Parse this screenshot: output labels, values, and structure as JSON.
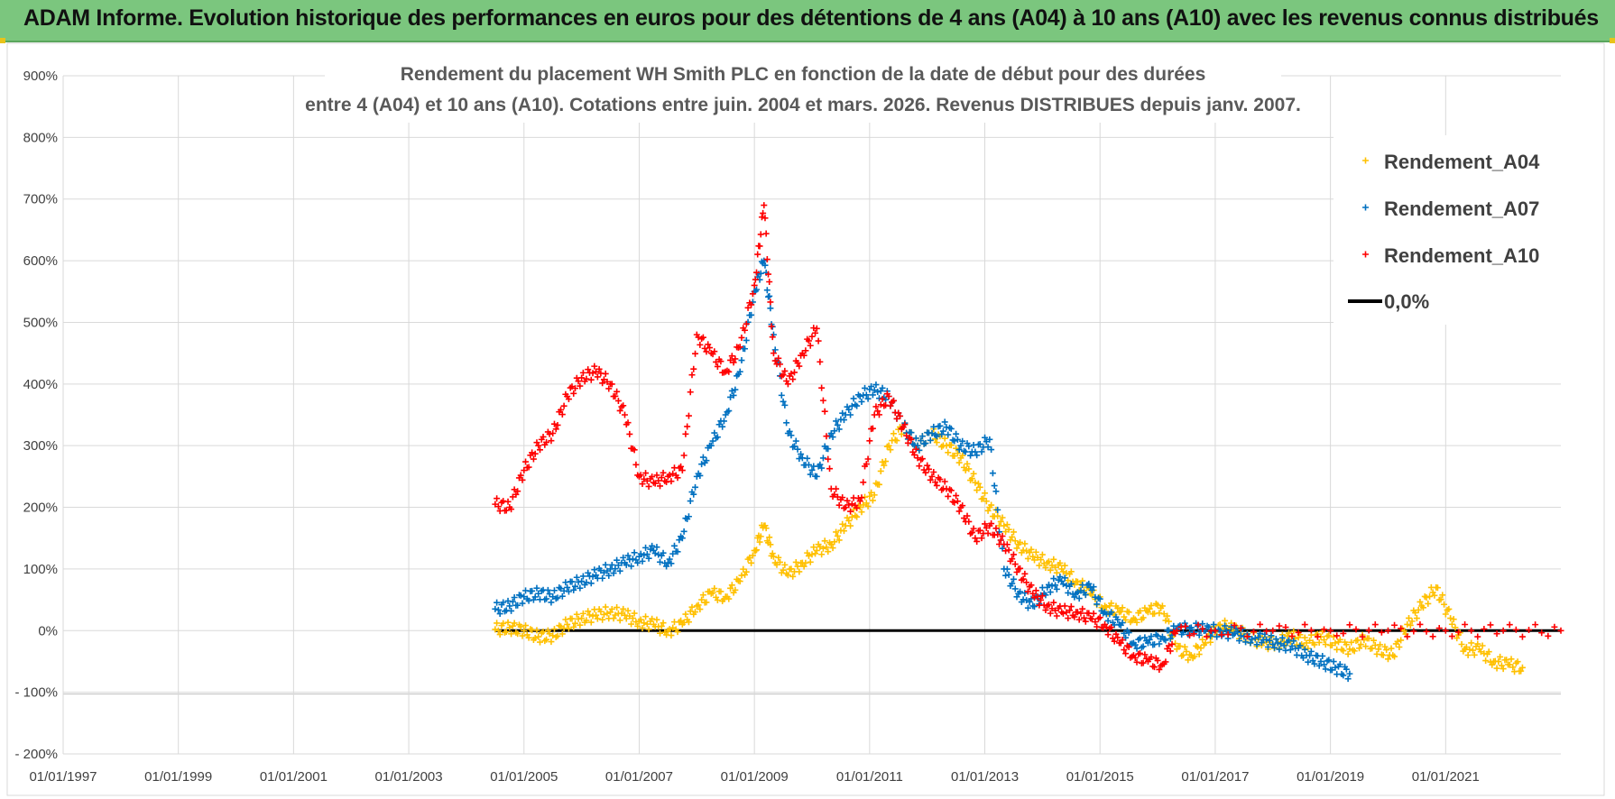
{
  "banner": {
    "title": "ADAM Informe. Evolution historique des performances en euros pour des détentions de 4 ans (A04) à 10 ans (A10) avec les revenus connus distribués"
  },
  "colors": {
    "banner_bg": "#7bc67e",
    "A04": "#ffc000",
    "A07": "#0070c0",
    "A10": "#ff0000",
    "zero_line": "#000000"
  },
  "chart_data": {
    "type": "scatter",
    "title": "Rendement du placement WH Smith PLC en fonction de la date de début pour des durées",
    "subtitle": "entre 4 (A04) et 10 ans (A10).  Cotations entre juin. 2004 et mars. 2026.  Revenus DISTRIBUES depuis janv. 2007.",
    "xlabel": "",
    "ylabel": "",
    "x_range": [
      "1997-01-01",
      "2023-01-01"
    ],
    "ylim": [
      -200,
      900
    ],
    "y_unit": "%",
    "x_ticks": [
      "01/01/1997",
      "01/01/1999",
      "01/01/2001",
      "01/01/2003",
      "01/01/2005",
      "01/01/2007",
      "01/01/2009",
      "01/01/2011",
      "01/01/2013",
      "01/01/2015",
      "01/01/2017",
      "01/01/2019",
      "01/01/2021"
    ],
    "y_ticks": [
      "900%",
      "800%",
      "700%",
      "600%",
      "500%",
      "400%",
      "300%",
      "200%",
      "100%",
      "0%",
      "- 100%",
      "- 200%"
    ],
    "grid": true,
    "legend_position": "top-right",
    "series": [
      {
        "name": "Rendement_A04",
        "points": [
          [
            "2004-07",
            2
          ],
          [
            "2004-10",
            5
          ],
          [
            "2005-01",
            0
          ],
          [
            "2005-04",
            -10
          ],
          [
            "2005-07",
            -8
          ],
          [
            "2005-10",
            10
          ],
          [
            "2006-01",
            20
          ],
          [
            "2006-04",
            25
          ],
          [
            "2006-07",
            30
          ],
          [
            "2006-10",
            25
          ],
          [
            "2007-01",
            15
          ],
          [
            "2007-04",
            10
          ],
          [
            "2007-07",
            0
          ],
          [
            "2007-10",
            10
          ],
          [
            "2008-01",
            40
          ],
          [
            "2008-04",
            60
          ],
          [
            "2008-07",
            55
          ],
          [
            "2008-10",
            80
          ],
          [
            "2009-01",
            130
          ],
          [
            "2009-03",
            170
          ],
          [
            "2009-05",
            120
          ],
          [
            "2009-08",
            90
          ],
          [
            "2009-11",
            110
          ],
          [
            "2010-02",
            130
          ],
          [
            "2010-05",
            140
          ],
          [
            "2010-08",
            170
          ],
          [
            "2010-11",
            200
          ],
          [
            "2011-02",
            220
          ],
          [
            "2011-05",
            300
          ],
          [
            "2011-08",
            330
          ],
          [
            "2011-11",
            300
          ],
          [
            "2012-02",
            320
          ],
          [
            "2012-05",
            300
          ],
          [
            "2012-08",
            280
          ],
          [
            "2012-11",
            240
          ],
          [
            "2013-02",
            200
          ],
          [
            "2013-05",
            170
          ],
          [
            "2013-08",
            140
          ],
          [
            "2013-11",
            120
          ],
          [
            "2014-02",
            110
          ],
          [
            "2014-05",
            100
          ],
          [
            "2014-08",
            80
          ],
          [
            "2014-11",
            60
          ],
          [
            "2015-02",
            40
          ],
          [
            "2015-05",
            30
          ],
          [
            "2015-08",
            20
          ],
          [
            "2015-11",
            30
          ],
          [
            "2016-02",
            40
          ],
          [
            "2016-05",
            -30
          ],
          [
            "2016-08",
            -40
          ],
          [
            "2016-11",
            -20
          ],
          [
            "2017-02",
            10
          ],
          [
            "2017-05",
            0
          ],
          [
            "2017-08",
            -10
          ],
          [
            "2017-11",
            -20
          ],
          [
            "2018-02",
            -20
          ],
          [
            "2018-05",
            -10
          ],
          [
            "2018-08",
            -20
          ],
          [
            "2018-11",
            -10
          ],
          [
            "2019-02",
            -20
          ],
          [
            "2019-05",
            -30
          ],
          [
            "2019-08",
            -15
          ],
          [
            "2019-11",
            -30
          ],
          [
            "2020-02",
            -40
          ],
          [
            "2020-05",
            10
          ],
          [
            "2020-08",
            40
          ],
          [
            "2020-11",
            70
          ],
          [
            "2021-02",
            20
          ],
          [
            "2021-05",
            -30
          ],
          [
            "2021-08",
            -30
          ],
          [
            "2021-11",
            -50
          ],
          [
            "2022-02",
            -55
          ],
          [
            "2022-05",
            -60
          ]
        ]
      },
      {
        "name": "Rendement_A07",
        "points": [
          [
            "2004-07",
            35
          ],
          [
            "2004-10",
            40
          ],
          [
            "2005-01",
            55
          ],
          [
            "2005-04",
            60
          ],
          [
            "2005-07",
            55
          ],
          [
            "2005-10",
            70
          ],
          [
            "2006-01",
            80
          ],
          [
            "2006-04",
            90
          ],
          [
            "2006-07",
            100
          ],
          [
            "2006-10",
            110
          ],
          [
            "2007-01",
            120
          ],
          [
            "2007-04",
            130
          ],
          [
            "2007-07",
            110
          ],
          [
            "2007-10",
            150
          ],
          [
            "2008-01",
            250
          ],
          [
            "2008-04",
            300
          ],
          [
            "2008-07",
            350
          ],
          [
            "2008-10",
            420
          ],
          [
            "2009-01",
            550
          ],
          [
            "2009-03",
            600
          ],
          [
            "2009-05",
            480
          ],
          [
            "2009-08",
            320
          ],
          [
            "2009-11",
            280
          ],
          [
            "2010-02",
            250
          ],
          [
            "2010-05",
            320
          ],
          [
            "2010-08",
            350
          ],
          [
            "2010-11",
            380
          ],
          [
            "2011-02",
            390
          ],
          [
            "2011-05",
            380
          ],
          [
            "2011-08",
            330
          ],
          [
            "2011-11",
            300
          ],
          [
            "2012-02",
            320
          ],
          [
            "2012-05",
            330
          ],
          [
            "2012-08",
            300
          ],
          [
            "2012-11",
            290
          ],
          [
            "2013-02",
            310
          ],
          [
            "2013-05",
            100
          ],
          [
            "2013-08",
            60
          ],
          [
            "2013-11",
            40
          ],
          [
            "2014-02",
            70
          ],
          [
            "2014-05",
            80
          ],
          [
            "2014-08",
            60
          ],
          [
            "2014-11",
            70
          ],
          [
            "2015-02",
            30
          ],
          [
            "2015-05",
            10
          ],
          [
            "2015-08",
            -20
          ],
          [
            "2015-11",
            -20
          ],
          [
            "2016-02",
            -10
          ],
          [
            "2016-05",
            0
          ],
          [
            "2016-08",
            5
          ],
          [
            "2016-11",
            0
          ],
          [
            "2017-02",
            0
          ],
          [
            "2017-05",
            -5
          ],
          [
            "2017-08",
            -10
          ],
          [
            "2017-11",
            -15
          ],
          [
            "2018-02",
            -20
          ],
          [
            "2018-05",
            -25
          ],
          [
            "2018-08",
            -40
          ],
          [
            "2018-11",
            -50
          ],
          [
            "2019-02",
            -60
          ],
          [
            "2019-05",
            -70
          ]
        ]
      },
      {
        "name": "Rendement_A10",
        "points": [
          [
            "2004-07",
            205
          ],
          [
            "2004-10",
            200
          ],
          [
            "2005-01",
            260
          ],
          [
            "2005-04",
            300
          ],
          [
            "2005-07",
            320
          ],
          [
            "2005-10",
            380
          ],
          [
            "2006-01",
            410
          ],
          [
            "2006-04",
            420
          ],
          [
            "2006-07",
            400
          ],
          [
            "2006-10",
            350
          ],
          [
            "2007-01",
            250
          ],
          [
            "2007-04",
            240
          ],
          [
            "2007-07",
            250
          ],
          [
            "2007-10",
            260
          ],
          [
            "2008-01",
            480
          ],
          [
            "2008-04",
            450
          ],
          [
            "2008-07",
            420
          ],
          [
            "2008-10",
            460
          ],
          [
            "2009-01",
            560
          ],
          [
            "2009-03",
            690
          ],
          [
            "2009-05",
            450
          ],
          [
            "2009-08",
            400
          ],
          [
            "2009-11",
            450
          ],
          [
            "2010-02",
            490
          ],
          [
            "2010-05",
            230
          ],
          [
            "2010-08",
            200
          ],
          [
            "2010-11",
            210
          ],
          [
            "2011-02",
            350
          ],
          [
            "2011-05",
            380
          ],
          [
            "2011-08",
            330
          ],
          [
            "2011-11",
            280
          ],
          [
            "2012-02",
            250
          ],
          [
            "2012-05",
            230
          ],
          [
            "2012-08",
            200
          ],
          [
            "2012-11",
            150
          ],
          [
            "2013-02",
            170
          ],
          [
            "2013-05",
            140
          ],
          [
            "2013-08",
            100
          ],
          [
            "2013-11",
            60
          ],
          [
            "2014-02",
            40
          ],
          [
            "2014-05",
            30
          ],
          [
            "2014-08",
            30
          ],
          [
            "2014-11",
            20
          ],
          [
            "2015-02",
            10
          ],
          [
            "2015-05",
            -20
          ],
          [
            "2015-08",
            -40
          ],
          [
            "2015-11",
            -50
          ],
          [
            "2016-02",
            -55
          ],
          [
            "2016-05",
            0
          ],
          [
            "2017-01",
            0
          ],
          [
            "2018-01",
            0
          ],
          [
            "2019-01",
            0
          ],
          [
            "2020-01",
            0
          ],
          [
            "2021-01",
            0
          ],
          [
            "2022-01",
            0
          ],
          [
            "2023-01",
            0
          ]
        ]
      },
      {
        "name": "0,0%",
        "line": [
          [
            "2004-07",
            0
          ],
          [
            "2023-01",
            0
          ]
        ]
      }
    ]
  }
}
